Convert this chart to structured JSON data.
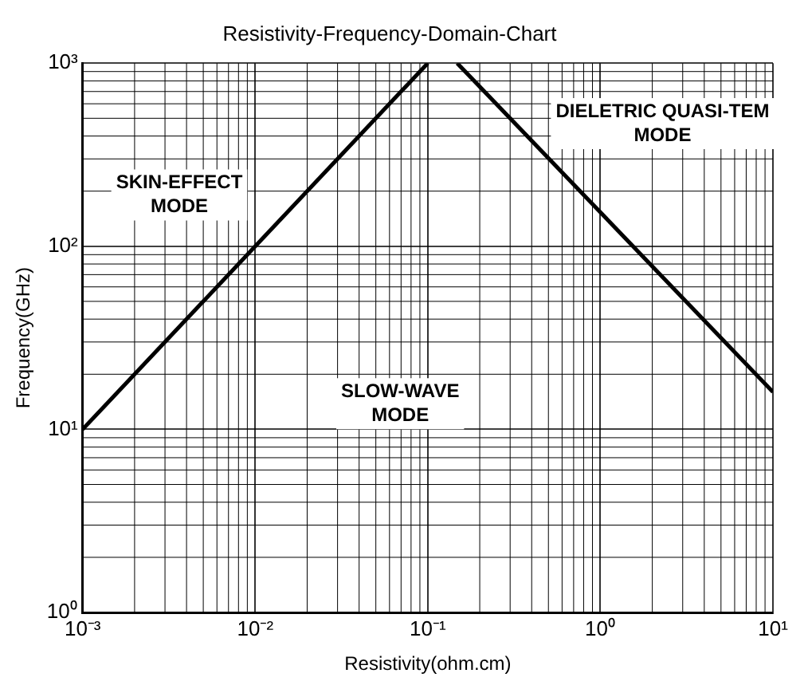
{
  "chart_data": {
    "type": "line",
    "title": "Resistivity-Frequency-Domain-Chart",
    "xlabel": "Resistivity(ohm.cm)",
    "ylabel": "Frequency(GHz)",
    "log": "xy",
    "grid": true,
    "legend": false,
    "marker": "none",
    "line_style": "solid",
    "xlim": [
      0.001,
      10
    ],
    "ylim": [
      1,
      1000
    ],
    "xticks": [
      {
        "value": 0.001,
        "label": "10⁻³"
      },
      {
        "value": 0.01,
        "label": "10⁻²"
      },
      {
        "value": 0.1,
        "label": "10⁻¹"
      },
      {
        "value": 1,
        "label": "10⁰"
      },
      {
        "value": 10,
        "label": "10¹"
      }
    ],
    "yticks": [
      {
        "value": 1,
        "label": "10⁰"
      },
      {
        "value": 10,
        "label": "10¹"
      },
      {
        "value": 100,
        "label": "10²"
      },
      {
        "value": 1000,
        "label": "10³"
      }
    ],
    "series": [
      {
        "color": "#000000",
        "x": [
          0.001,
          0.1
        ],
        "values": [
          10,
          1000
        ]
      },
      {
        "color": "#000000",
        "x": [
          0.148,
          10
        ],
        "values": [
          1000,
          16
        ]
      }
    ],
    "annotations": [
      "SKIN-EFFECT\nMODE",
      "SLOW-WAVE\nMODE",
      "DIELETRIC QUASI-TEM\nMODE"
    ]
  }
}
